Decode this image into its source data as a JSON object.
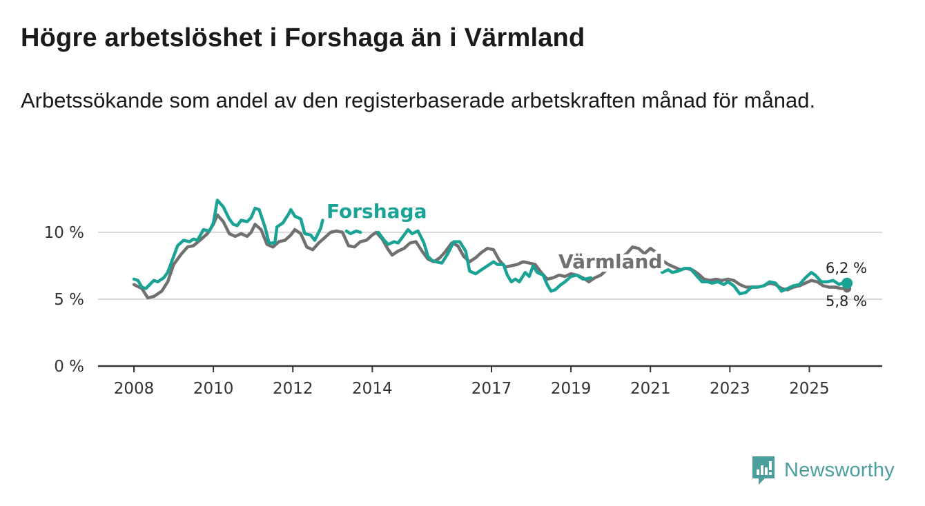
{
  "title": "Högre arbetslöshet i Forshaga än i Värmland",
  "subtitle": "Arbetssökande som andel av den registerbaserade arbetskraften månad för månad.",
  "brand": {
    "name": "Newsworthy",
    "icon": "newsworthy-logo-icon",
    "color": "#4c9e9c"
  },
  "chart_data": {
    "type": "line",
    "title": "Högre arbetslöshet i Forshaga än i Värmland",
    "xlabel": "",
    "ylabel": "",
    "xlim": [
      2008,
      2026.0
    ],
    "ylim": [
      0,
      10
    ],
    "y_ticks": [
      {
        "value": 0,
        "label": "0 %"
      },
      {
        "value": 5,
        "label": "5 %"
      },
      {
        "value": 10,
        "label": "10 %"
      }
    ],
    "x_ticks": [
      {
        "value": 2008,
        "label": "2008"
      },
      {
        "value": 2010,
        "label": "2010"
      },
      {
        "value": 2012,
        "label": "2012"
      },
      {
        "value": 2014,
        "label": "2014"
      },
      {
        "value": 2017,
        "label": "2017"
      },
      {
        "value": 2019,
        "label": "2019"
      },
      {
        "value": 2021,
        "label": "2021"
      },
      {
        "value": 2023,
        "label": "2023"
      },
      {
        "value": 2025,
        "label": "2025"
      }
    ],
    "grid": "horizontal",
    "series": [
      {
        "name": "Värmland",
        "color": "#707070",
        "end_label": "5,8 %",
        "points": [
          [
            2008.0,
            6.1
          ],
          [
            2008.2,
            5.8
          ],
          [
            2008.35,
            5.1
          ],
          [
            2008.5,
            5.2
          ],
          [
            2008.7,
            5.6
          ],
          [
            2008.85,
            6.3
          ],
          [
            2009.0,
            7.6
          ],
          [
            2009.2,
            8.4
          ],
          [
            2009.35,
            8.9
          ],
          [
            2009.5,
            9.0
          ],
          [
            2009.7,
            9.5
          ],
          [
            2009.85,
            9.9
          ],
          [
            2010.0,
            10.6
          ],
          [
            2010.1,
            11.3
          ],
          [
            2010.25,
            10.8
          ],
          [
            2010.4,
            9.9
          ],
          [
            2010.55,
            9.7
          ],
          [
            2010.7,
            9.9
          ],
          [
            2010.85,
            9.7
          ],
          [
            2010.95,
            10.0
          ],
          [
            2011.05,
            10.6
          ],
          [
            2011.2,
            10.2
          ],
          [
            2011.35,
            9.1
          ],
          [
            2011.5,
            8.9
          ],
          [
            2011.65,
            9.3
          ],
          [
            2011.8,
            9.4
          ],
          [
            2011.95,
            9.8
          ],
          [
            2012.05,
            10.2
          ],
          [
            2012.2,
            9.9
          ],
          [
            2012.35,
            8.9
          ],
          [
            2012.5,
            8.7
          ],
          [
            2012.65,
            9.2
          ],
          [
            2012.8,
            9.6
          ],
          [
            2012.95,
            10.0
          ],
          [
            2013.1,
            10.1
          ],
          [
            2013.25,
            10.0
          ],
          [
            2013.4,
            9.0
          ],
          [
            2013.55,
            8.9
          ],
          [
            2013.7,
            9.3
          ],
          [
            2013.85,
            9.4
          ],
          [
            2014.0,
            9.8
          ],
          [
            2014.1,
            10.0
          ],
          [
            2014.25,
            9.5
          ],
          [
            2014.4,
            8.7
          ],
          [
            2014.5,
            8.3
          ],
          [
            2014.65,
            8.6
          ],
          [
            2014.8,
            8.8
          ],
          [
            2014.95,
            9.2
          ],
          [
            2015.1,
            9.3
          ],
          [
            2015.25,
            8.6
          ],
          [
            2015.4,
            8.0
          ],
          [
            2015.55,
            7.8
          ],
          [
            2015.7,
            8.1
          ],
          [
            2015.85,
            8.6
          ],
          [
            2016.0,
            9.2
          ],
          [
            2016.15,
            9.0
          ],
          [
            2016.3,
            8.2
          ],
          [
            2016.45,
            7.8
          ],
          [
            2016.6,
            8.1
          ],
          [
            2016.75,
            8.5
          ],
          [
            2016.9,
            8.8
          ],
          [
            2017.05,
            8.7
          ],
          [
            2017.2,
            7.9
          ],
          [
            2017.35,
            7.4
          ],
          [
            2017.5,
            7.5
          ],
          [
            2017.65,
            7.6
          ],
          [
            2017.8,
            7.8
          ],
          [
            2017.95,
            7.7
          ],
          [
            2018.1,
            7.6
          ],
          [
            2018.25,
            7.0
          ],
          [
            2018.4,
            6.5
          ],
          [
            2018.55,
            6.6
          ],
          [
            2018.7,
            6.8
          ],
          [
            2018.85,
            6.7
          ],
          [
            2019.0,
            6.9
          ],
          [
            2019.15,
            6.8
          ],
          [
            2019.3,
            6.6
          ],
          [
            2019.45,
            6.3
          ],
          [
            2019.6,
            6.6
          ],
          [
            2019.75,
            6.8
          ],
          [
            2019.9,
            7.2
          ],
          [
            2020.1,
            7.6
          ],
          [
            2020.25,
            8.1
          ],
          [
            2020.4,
            8.4
          ],
          [
            2020.55,
            8.9
          ],
          [
            2020.7,
            8.8
          ],
          [
            2020.85,
            8.4
          ],
          [
            2021.0,
            8.8
          ],
          [
            2021.15,
            8.5
          ],
          [
            2021.3,
            7.9
          ],
          [
            2021.45,
            7.6
          ],
          [
            2021.6,
            7.4
          ],
          [
            2021.75,
            7.2
          ],
          [
            2021.9,
            7.3
          ],
          [
            2022.05,
            7.2
          ],
          [
            2022.2,
            6.9
          ],
          [
            2022.35,
            6.5
          ],
          [
            2022.5,
            6.4
          ],
          [
            2022.65,
            6.5
          ],
          [
            2022.8,
            6.4
          ],
          [
            2022.95,
            6.5
          ],
          [
            2023.1,
            6.4
          ],
          [
            2023.25,
            6.1
          ],
          [
            2023.4,
            5.9
          ],
          [
            2023.55,
            5.9
          ],
          [
            2023.7,
            5.9
          ],
          [
            2023.85,
            6.0
          ],
          [
            2024.0,
            6.2
          ],
          [
            2024.15,
            6.1
          ],
          [
            2024.3,
            5.8
          ],
          [
            2024.45,
            5.7
          ],
          [
            2024.6,
            5.9
          ],
          [
            2024.75,
            6.0
          ],
          [
            2024.9,
            6.2
          ],
          [
            2025.05,
            6.4
          ],
          [
            2025.2,
            6.3
          ],
          [
            2025.35,
            6.0
          ],
          [
            2025.5,
            5.9
          ],
          [
            2025.65,
            5.9
          ],
          [
            2025.8,
            5.8
          ],
          [
            2025.95,
            5.8
          ]
        ]
      },
      {
        "name": "Forshaga",
        "color": "#1aa394",
        "end_label": "6,2 %",
        "points": [
          [
            2008.0,
            6.5
          ],
          [
            2008.1,
            6.4
          ],
          [
            2008.2,
            5.9
          ],
          [
            2008.3,
            5.8
          ],
          [
            2008.5,
            6.4
          ],
          [
            2008.6,
            6.3
          ],
          [
            2008.75,
            6.6
          ],
          [
            2008.85,
            7.0
          ],
          [
            2009.0,
            8.2
          ],
          [
            2009.1,
            9.0
          ],
          [
            2009.25,
            9.4
          ],
          [
            2009.4,
            9.3
          ],
          [
            2009.5,
            9.5
          ],
          [
            2009.6,
            9.4
          ],
          [
            2009.75,
            10.2
          ],
          [
            2009.9,
            10.1
          ],
          [
            2010.0,
            10.7
          ],
          [
            2010.1,
            12.4
          ],
          [
            2010.25,
            11.9
          ],
          [
            2010.4,
            11.0
          ],
          [
            2010.5,
            10.6
          ],
          [
            2010.6,
            10.5
          ],
          [
            2010.7,
            10.9
          ],
          [
            2010.85,
            10.8
          ],
          [
            2010.95,
            11.1
          ],
          [
            2011.05,
            11.8
          ],
          [
            2011.15,
            11.7
          ],
          [
            2011.3,
            10.4
          ],
          [
            2011.4,
            9.2
          ],
          [
            2011.55,
            9.2
          ],
          [
            2011.6,
            10.4
          ],
          [
            2011.75,
            10.7
          ],
          [
            2011.9,
            11.4
          ],
          [
            2011.95,
            11.7
          ],
          [
            2012.05,
            11.2
          ],
          [
            2012.2,
            11.0
          ],
          [
            2012.3,
            9.9
          ],
          [
            2012.45,
            9.8
          ],
          [
            2012.55,
            9.4
          ],
          [
            2012.7,
            10.3
          ],
          [
            2012.75,
            10.9
          ]
        ],
        "points_b": [
          [
            2013.35,
            10.1
          ],
          [
            2013.45,
            9.9
          ],
          [
            2013.6,
            10.1
          ],
          [
            2013.7,
            10.0
          ]
        ],
        "points_c": [
          [
            2014.15,
            10.0
          ],
          [
            2014.3,
            9.4
          ],
          [
            2014.4,
            9.1
          ],
          [
            2014.55,
            9.3
          ],
          [
            2014.65,
            9.2
          ],
          [
            2014.8,
            9.8
          ],
          [
            2014.9,
            10.2
          ],
          [
            2015.0,
            9.9
          ],
          [
            2015.15,
            10.1
          ],
          [
            2015.3,
            9.2
          ],
          [
            2015.4,
            8.2
          ],
          [
            2015.5,
            7.9
          ],
          [
            2015.6,
            7.8
          ],
          [
            2015.75,
            7.7
          ],
          [
            2015.9,
            8.4
          ],
          [
            2016.05,
            9.3
          ],
          [
            2016.2,
            9.3
          ],
          [
            2016.35,
            8.6
          ],
          [
            2016.45,
            7.1
          ],
          [
            2016.6,
            6.9
          ],
          [
            2016.75,
            7.2
          ],
          [
            2016.95,
            7.6
          ],
          [
            2017.05,
            7.8
          ],
          [
            2017.15,
            7.6
          ],
          [
            2017.3,
            7.6
          ],
          [
            2017.4,
            6.8
          ],
          [
            2017.5,
            6.3
          ],
          [
            2017.6,
            6.5
          ],
          [
            2017.7,
            6.3
          ],
          [
            2017.85,
            7.0
          ],
          [
            2017.95,
            6.7
          ],
          [
            2018.05,
            7.5
          ],
          [
            2018.15,
            7.0
          ],
          [
            2018.3,
            6.8
          ],
          [
            2018.4,
            6.1
          ],
          [
            2018.5,
            5.6
          ],
          [
            2018.6,
            5.7
          ],
          [
            2018.75,
            6.1
          ],
          [
            2018.85,
            6.3
          ],
          [
            2019.0,
            6.7
          ],
          [
            2019.15,
            6.8
          ],
          [
            2019.3,
            6.5
          ]
        ],
        "points_d": [
          [
            2019.35,
            6.5
          ],
          [
            2019.5,
            6.6
          ]
        ],
        "points_e": [
          [
            2021.2,
            7.6
          ],
          [
            2021.3,
            7.0
          ],
          [
            2021.45,
            7.2
          ],
          [
            2021.55,
            7.0
          ],
          [
            2021.7,
            7.1
          ],
          [
            2021.85,
            7.3
          ],
          [
            2022.0,
            7.3
          ],
          [
            2022.15,
            6.8
          ],
          [
            2022.3,
            6.3
          ],
          [
            2022.45,
            6.3
          ],
          [
            2022.55,
            6.2
          ],
          [
            2022.7,
            6.3
          ],
          [
            2022.85,
            6.1
          ],
          [
            2022.95,
            6.3
          ],
          [
            2023.1,
            6.0
          ],
          [
            2023.25,
            5.4
          ],
          [
            2023.4,
            5.5
          ],
          [
            2023.55,
            5.9
          ],
          [
            2023.7,
            5.9
          ],
          [
            2023.85,
            6.0
          ],
          [
            2024.0,
            6.3
          ],
          [
            2024.15,
            6.2
          ],
          [
            2024.3,
            5.6
          ],
          [
            2024.45,
            5.8
          ],
          [
            2024.6,
            6.0
          ],
          [
            2024.75,
            6.1
          ],
          [
            2024.9,
            6.6
          ],
          [
            2025.05,
            7.0
          ],
          [
            2025.15,
            6.8
          ],
          [
            2025.3,
            6.3
          ],
          [
            2025.45,
            6.3
          ],
          [
            2025.6,
            6.4
          ],
          [
            2025.75,
            6.1
          ],
          [
            2025.9,
            6.3
          ],
          [
            2025.95,
            6.2
          ]
        ]
      }
    ]
  }
}
